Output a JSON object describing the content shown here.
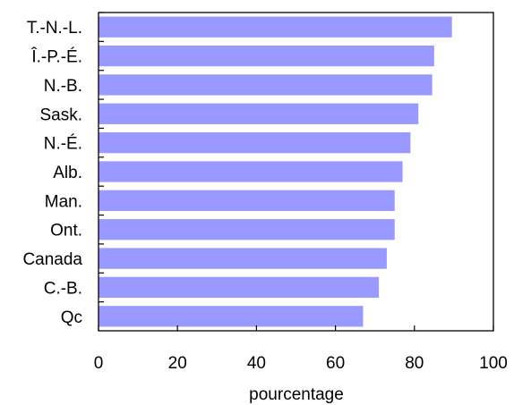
{
  "chart_data": {
    "type": "bar",
    "orientation": "horizontal",
    "categories": [
      "T.-N.-L.",
      "Î.-P.-É.",
      "N.-B.",
      "Sask.",
      "N.-É.",
      "Alb.",
      "Man.",
      "Ont.",
      "Canada",
      "C.-B.",
      "Qc"
    ],
    "values": [
      89.5,
      85,
      84.5,
      81,
      79,
      77,
      75,
      75,
      73,
      71,
      67
    ],
    "xlabel": "pourcentage",
    "ylabel": "",
    "xlim": [
      0,
      100
    ],
    "xticks": [
      0,
      20,
      40,
      60,
      80,
      100
    ],
    "xtick_labels": [
      "0",
      "20",
      "40",
      "60",
      "80",
      "100"
    ],
    "bar_color": "#9999ff",
    "grid": false,
    "legend": "none"
  }
}
